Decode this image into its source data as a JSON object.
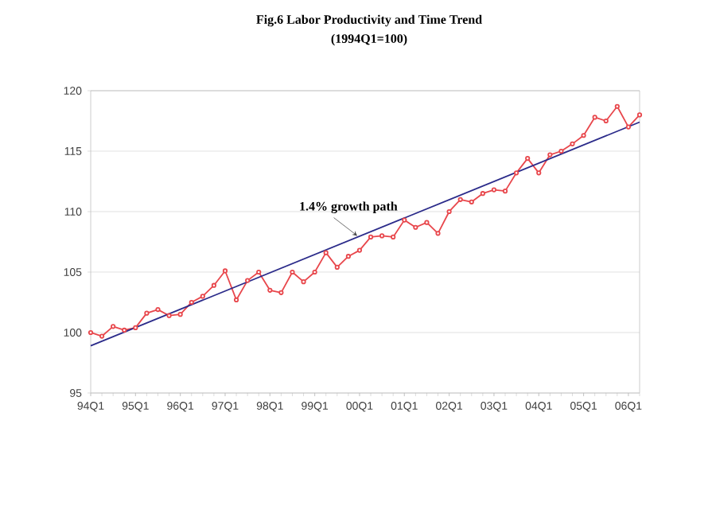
{
  "chart_data": {
    "type": "line",
    "title": "Fig.6 Labor Productivity and Time Trend",
    "subtitle": "(1994Q1=100)",
    "categories": [
      "94Q1",
      null,
      null,
      null,
      "95Q1",
      null,
      null,
      null,
      "96Q1",
      null,
      null,
      null,
      "97Q1",
      null,
      null,
      null,
      "98Q1",
      null,
      null,
      null,
      "99Q1",
      null,
      null,
      null,
      "00Q1",
      null,
      null,
      null,
      "01Q1",
      null,
      null,
      null,
      "02Q1",
      null,
      null,
      null,
      "03Q1",
      null,
      null,
      null,
      "04Q1",
      null,
      null,
      null,
      "05Q1",
      null,
      null,
      null,
      "06Q1",
      null
    ],
    "series": [
      {
        "color": "#e8474c",
        "marker": "circle",
        "values": [
          100.0,
          99.7,
          100.5,
          100.2,
          100.4,
          101.6,
          101.9,
          101.4,
          101.5,
          102.5,
          103.0,
          103.9,
          105.1,
          102.7,
          104.3,
          105.0,
          103.5,
          103.3,
          105.0,
          104.2,
          105.0,
          106.6,
          105.4,
          106.3,
          106.8,
          107.9,
          108.0,
          107.9,
          109.3,
          108.7,
          109.1,
          108.2,
          110.0,
          111.0,
          110.8,
          111.5,
          111.8,
          111.7,
          113.2,
          114.4,
          113.2,
          114.7,
          115.0,
          115.6,
          116.3,
          117.8,
          117.5,
          118.7,
          117.0,
          118.0
        ]
      },
      {
        "color": "#2b2b8a",
        "marker": "none",
        "values": [
          98.9,
          null,
          null,
          null,
          null,
          null,
          null,
          null,
          null,
          null,
          null,
          null,
          null,
          null,
          null,
          null,
          null,
          null,
          null,
          null,
          null,
          null,
          null,
          null,
          null,
          null,
          null,
          null,
          null,
          null,
          null,
          null,
          null,
          null,
          null,
          null,
          null,
          null,
          null,
          null,
          null,
          null,
          null,
          null,
          null,
          null,
          null,
          null,
          null,
          117.4
        ]
      }
    ],
    "ylim": [
      95,
      120
    ],
    "yticks": [
      95,
      100,
      105,
      110,
      115,
      120
    ],
    "grid": "y",
    "line_style": "solid",
    "annotations": [
      "1.4% growth path"
    ]
  }
}
